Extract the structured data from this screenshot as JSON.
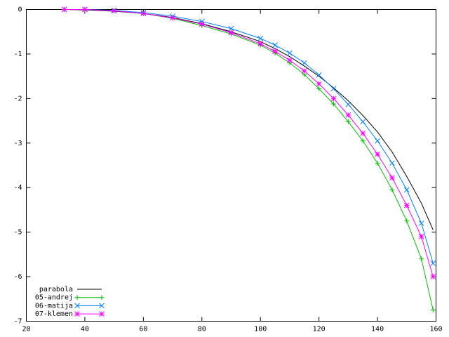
{
  "chart_data": {
    "type": "line",
    "x": [
      33,
      40,
      50,
      60,
      70,
      80,
      90,
      100,
      105,
      110,
      115,
      120,
      125,
      130,
      135,
      140,
      145,
      150,
      155,
      159
    ],
    "series": [
      {
        "name": "parabola",
        "color": "#000000",
        "marker": "none",
        "values": [
          0,
          -0.01,
          -0.04,
          -0.09,
          -0.18,
          -0.32,
          -0.5,
          -0.72,
          -0.88,
          -1.06,
          -1.27,
          -1.5,
          -1.76,
          -2.05,
          -2.38,
          -2.75,
          -3.2,
          -3.75,
          -4.35,
          -4.95
        ]
      },
      {
        "name": "05-andrej",
        "color": "#00c000",
        "marker": "plus",
        "values": [
          0,
          0,
          -0.03,
          -0.09,
          -0.2,
          -0.36,
          -0.55,
          -0.8,
          -0.98,
          -1.2,
          -1.46,
          -1.78,
          -2.12,
          -2.52,
          -2.95,
          -3.45,
          -4.05,
          -4.75,
          -5.6,
          -6.75
        ]
      },
      {
        "name": "06-matija",
        "color": "#0080ff",
        "marker": "cross",
        "values": [
          0,
          0,
          -0.02,
          -0.07,
          -0.15,
          -0.27,
          -0.43,
          -0.65,
          -0.8,
          -0.98,
          -1.2,
          -1.47,
          -1.78,
          -2.13,
          -2.52,
          -2.95,
          -3.45,
          -4.05,
          -4.8,
          -5.7
        ]
      },
      {
        "name": "07-klemen",
        "color": "#ff00ff",
        "marker": "star",
        "values": [
          0,
          0,
          -0.03,
          -0.09,
          -0.19,
          -0.33,
          -0.52,
          -0.77,
          -0.94,
          -1.14,
          -1.38,
          -1.67,
          -2.0,
          -2.37,
          -2.78,
          -3.25,
          -3.78,
          -4.4,
          -5.1,
          -6.0
        ]
      }
    ],
    "xlim": [
      20,
      160
    ],
    "xticks": [
      20,
      40,
      60,
      80,
      100,
      120,
      140,
      160
    ],
    "ylim": [
      -7,
      0
    ],
    "yticks": [
      0,
      -1,
      -2,
      -3,
      -4,
      -5,
      -6,
      -7
    ],
    "legend": "bottom-left"
  }
}
